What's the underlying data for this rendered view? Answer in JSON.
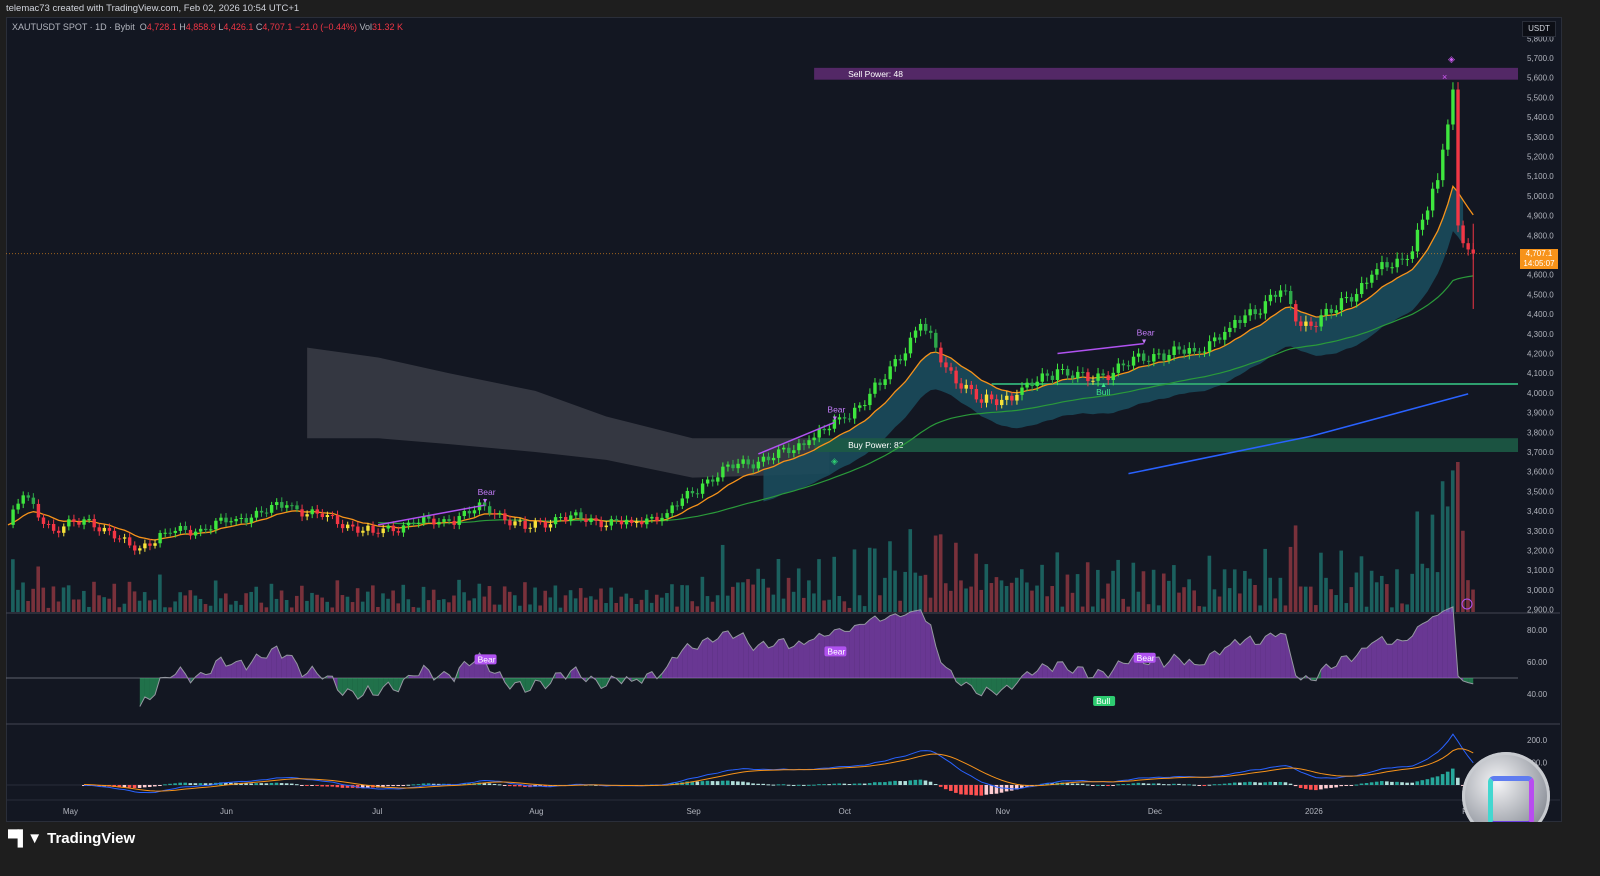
{
  "header": {
    "credit": "telemac73 created with TradingView.com, Feb 02, 2026 10:54 UTC+1",
    "symbol": "XAUTUSDT SPOT · 1D · Bybit",
    "open_label": "O",
    "open": "4,728.1",
    "high_label": "H",
    "high": "4,858.9",
    "low_label": "L",
    "low": "4,426.1",
    "close_label": "C",
    "close": "4,707.1",
    "change": "−21.0 (−0.44%)",
    "vol_label": "Vol",
    "vol": "31.32 K"
  },
  "price_axis": {
    "currency": "USDT",
    "ticks": [
      5800,
      5700,
      5600,
      5500,
      5400,
      5300,
      5200,
      5100,
      5000,
      4900,
      4800,
      4600,
      4500,
      4400,
      4300,
      4200,
      4100,
      4000,
      3900,
      3800,
      3700,
      3600,
      3500,
      3400,
      3300,
      3200,
      3100,
      3000,
      2900
    ],
    "last_price": "4,707.1",
    "countdown": "14:05:07"
  },
  "time_axis": {
    "labels": [
      {
        "date": "2025-05-01",
        "text": "May"
      },
      {
        "date": "2025-06-01",
        "text": "Jun"
      },
      {
        "date": "2025-07-01",
        "text": "Jul"
      },
      {
        "date": "2025-08-01",
        "text": "Aug"
      },
      {
        "date": "2025-09-01",
        "text": "Sep"
      },
      {
        "date": "2025-10-01",
        "text": "Oct"
      },
      {
        "date": "2025-11-01",
        "text": "Nov"
      },
      {
        "date": "2025-12-01",
        "text": "Dec"
      },
      {
        "date": "2026-01-01",
        "text": "2026"
      },
      {
        "date": "2026-02-01",
        "text": "Feb"
      }
    ]
  },
  "rsi_axis": {
    "ticks": [
      "80.00",
      "60.00",
      "40.00"
    ]
  },
  "macd_axis": {
    "ticks": [
      "200.0",
      "100.0"
    ]
  },
  "zones": {
    "sell": {
      "label": "Sell Power: 48",
      "from": 5590,
      "to": 5650,
      "start": "2025-09-25",
      "color": "#5b2a6e"
    },
    "buy": {
      "label": "Buy Power: 82",
      "from": 3700,
      "to": 3770,
      "start": "2025-09-25",
      "color": "#1d5a45"
    },
    "support_line": {
      "price": 4045,
      "start": "2025-10-30",
      "color": "#2e9e6e"
    }
  },
  "annotations": {
    "main": [
      {
        "text": "Bear",
        "date": "2025-07-22",
        "price": 3440,
        "type": "bear"
      },
      {
        "text": "Bear",
        "date": "2025-09-29",
        "price": 3860,
        "type": "bear"
      },
      {
        "text": "Bear",
        "date": "2025-11-29",
        "price": 4250,
        "type": "bear"
      },
      {
        "text": "Bull",
        "date": "2025-11-21",
        "price": 4050,
        "type": "bull"
      }
    ],
    "rsi": [
      {
        "text": "Bear",
        "date": "2025-07-22",
        "value": 61,
        "type": "bear"
      },
      {
        "text": "Bear",
        "date": "2025-09-29",
        "value": 66,
        "type": "bear"
      },
      {
        "text": "Bear",
        "date": "2025-11-29",
        "value": 62,
        "type": "bear"
      },
      {
        "text": "Bull",
        "date": "2025-11-21",
        "value": 35,
        "type": "bull"
      }
    ]
  },
  "colors": {
    "background": "#131722",
    "bull": "#3ee63e",
    "bear": "#f23645",
    "neutral_up": "#f7e23a",
    "neutral_down": "#f7931a",
    "ema_fast": "#f7931a",
    "ma_mid": "#2a9a3a",
    "ma_slow": "#2962ff",
    "cloud_gray": "#3b3d46",
    "cloud_teal": "#1b4b5c",
    "rsi_up": "#b052f0",
    "rsi_down": "#2ecc71",
    "macd": "#2962ff",
    "signal": "#f7931a"
  },
  "chart_data": {
    "type": "candlestick",
    "symbol": "XAUTUSDT",
    "interval": "1D",
    "ylim": [
      2900,
      5800
    ],
    "grid": false,
    "close_anchors": [
      [
        "2025-04-19",
        3330
      ],
      [
        "2025-04-22",
        3480
      ],
      [
        "2025-04-28",
        3300
      ],
      [
        "2025-05-05",
        3360
      ],
      [
        "2025-05-14",
        3200
      ],
      [
        "2025-05-20",
        3290
      ],
      [
        "2025-05-27",
        3310
      ],
      [
        "2025-06-03",
        3360
      ],
      [
        "2025-06-13",
        3430
      ],
      [
        "2025-06-20",
        3370
      ],
      [
        "2025-06-30",
        3290
      ],
      [
        "2025-07-08",
        3340
      ],
      [
        "2025-07-15",
        3350
      ],
      [
        "2025-07-22",
        3425
      ],
      [
        "2025-07-30",
        3310
      ],
      [
        "2025-08-06",
        3370
      ],
      [
        "2025-08-13",
        3350
      ],
      [
        "2025-08-20",
        3340
      ],
      [
        "2025-08-27",
        3390
      ],
      [
        "2025-09-03",
        3540
      ],
      [
        "2025-09-10",
        3640
      ],
      [
        "2025-09-17",
        3670
      ],
      [
        "2025-09-24",
        3760
      ],
      [
        "2025-10-01",
        3870
      ],
      [
        "2025-10-08",
        4040
      ],
      [
        "2025-10-16",
        4350
      ],
      [
        "2025-10-21",
        4130
      ],
      [
        "2025-10-28",
        3950
      ],
      [
        "2025-11-04",
        3990
      ],
      [
        "2025-11-12",
        4120
      ],
      [
        "2025-11-18",
        4060
      ],
      [
        "2025-11-25",
        4140
      ],
      [
        "2025-12-02",
        4200
      ],
      [
        "2025-12-09",
        4210
      ],
      [
        "2025-12-16",
        4330
      ],
      [
        "2025-12-26",
        4520
      ],
      [
        "2025-12-30",
        4340
      ],
      [
        "2026-01-06",
        4420
      ],
      [
        "2026-01-13",
        4600
      ],
      [
        "2026-01-20",
        4680
      ],
      [
        "2026-01-26",
        5080
      ],
      [
        "2026-01-29",
        5540
      ],
      [
        "2026-01-30",
        4850
      ],
      [
        "2026-02-02",
        4707.1
      ]
    ],
    "gray_cloud": [
      [
        "2025-06-17",
        4230,
        3770
      ],
      [
        "2025-07-01",
        4180,
        3770
      ],
      [
        "2025-07-15",
        4100,
        3740
      ],
      [
        "2025-08-01",
        4010,
        3700
      ],
      [
        "2025-08-15",
        3880,
        3660
      ],
      [
        "2025-09-01",
        3770,
        3570
      ],
      [
        "2025-09-28",
        3770,
        3590
      ]
    ],
    "slow_ma": [
      [
        "2025-11-26",
        3590
      ],
      [
        "2026-01-01",
        3780
      ],
      [
        "2026-02-01",
        3995
      ]
    ]
  }
}
